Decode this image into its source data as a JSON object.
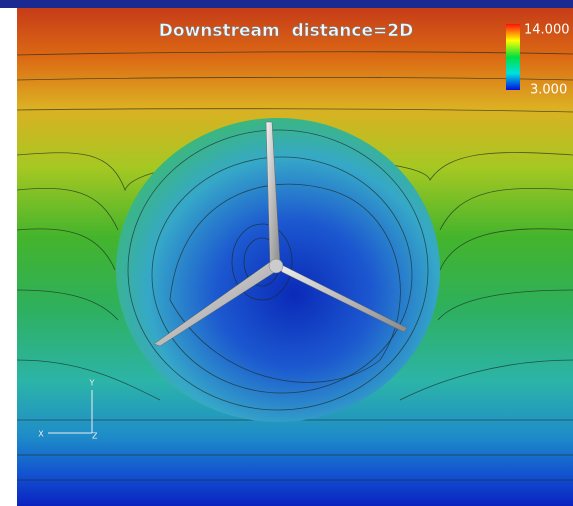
{
  "title": "Downstream  distance=2D",
  "colorbar": {
    "max_label": "14.000",
    "min_label": "3.000"
  },
  "axes": {
    "y": "Y",
    "x": "X",
    "z": "Z"
  }
}
